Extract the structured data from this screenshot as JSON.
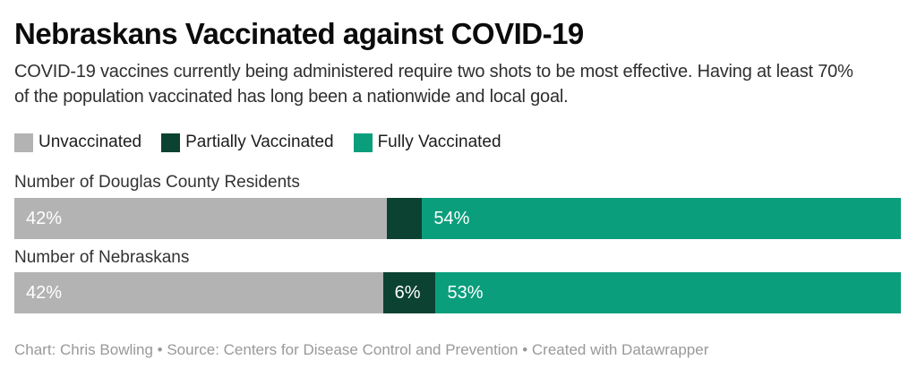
{
  "header": {
    "title": "Nebraskans Vaccinated against COVID-19",
    "description": "COVID-19 vaccines currently being administered require two shots to be most effective. Having at least 70% of the population vaccinated has long been a nationwide and local goal."
  },
  "footer": {
    "credit": "Chart: Chris Bowling • Source: Centers for Disease Control and Prevention • Created with Datawrapper"
  },
  "colors": {
    "unvaccinated": "#b3b3b3",
    "partially_vaccinated": "#0c4232",
    "fully_vaccinated": "#0b9e7c",
    "bar_label": "#ffffff",
    "background": "#ffffff"
  },
  "chart_data": {
    "type": "bar",
    "variant": "horizontal-stacked",
    "title": "Nebraskans Vaccinated against COVID-19",
    "subtitle": "COVID-19 vaccines currently being administered require two shots to be most effective. Having at least 70% of the population vaccinated has long been a nationwide and local goal.",
    "unit": "%",
    "xlim": [
      0,
      100
    ],
    "grid": false,
    "legend_position": "top",
    "categories": [
      "Number of Douglas County Residents",
      "Number of Nebraskans"
    ],
    "series": [
      {
        "name": "Unvaccinated",
        "color": "#b3b3b3",
        "values": [
          42,
          42
        ],
        "data_labels": [
          "42%",
          "42%"
        ]
      },
      {
        "name": "Partially Vaccinated",
        "color": "#0c4232",
        "values": [
          4,
          6
        ],
        "data_labels": [
          "",
          "6%"
        ]
      },
      {
        "name": "Fully Vaccinated",
        "color": "#0b9e7c",
        "values": [
          54,
          53
        ],
        "data_labels": [
          "54%",
          "53%"
        ]
      }
    ],
    "credit": "Chart: Chris Bowling • Source: Centers for Disease Control and Prevention • Created with Datawrapper"
  }
}
